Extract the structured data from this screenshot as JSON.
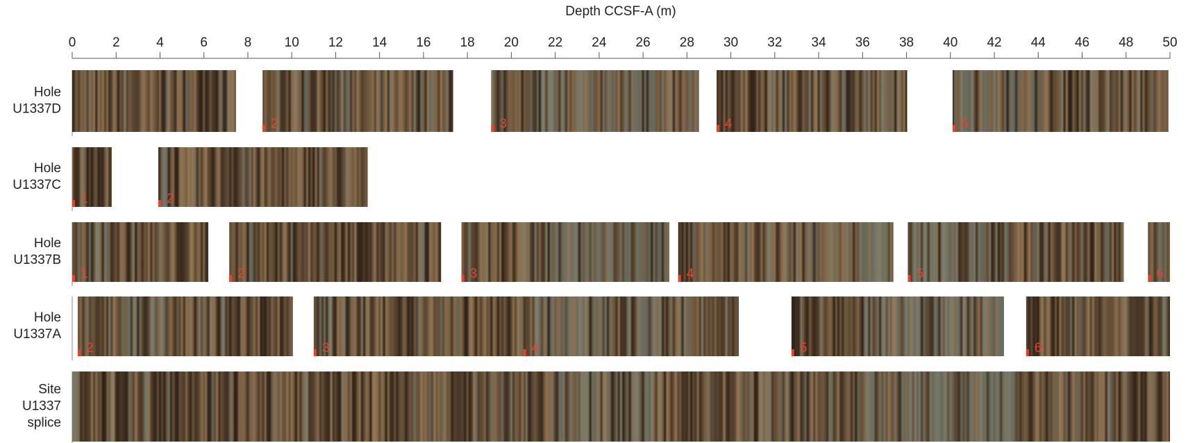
{
  "chart_data": {
    "type": "core-strip",
    "title": "Depth CCSF-A (m)",
    "xlim": [
      0,
      50
    ],
    "xticks": [
      0,
      2,
      4,
      6,
      8,
      10,
      12,
      14,
      16,
      18,
      20,
      22,
      24,
      26,
      28,
      30,
      32,
      34,
      36,
      38,
      40,
      42,
      44,
      46,
      48,
      50
    ],
    "rows": [
      {
        "label": [
          "Hole",
          "U1337D"
        ],
        "segments": [
          {
            "start": 0,
            "end": 7.46
          },
          {
            "label": "2",
            "start": 8.67,
            "end": 17.35
          },
          {
            "label": "3",
            "start": 19.08,
            "end": 28.55
          },
          {
            "label": "4",
            "start": 29.35,
            "end": 38.03
          },
          {
            "label": "5",
            "start": 40.1,
            "end": 49.93
          }
        ]
      },
      {
        "label": [
          "Hole",
          "U1337C"
        ],
        "segments": [
          {
            "label": "1",
            "start": 0,
            "end": 1.8
          },
          {
            "label": "2",
            "start": 3.92,
            "end": 13.46
          }
        ]
      },
      {
        "label": [
          "Hole",
          "U1337B"
        ],
        "segments": [
          {
            "label": "1",
            "start": 0,
            "end": 6.2
          },
          {
            "label": "2",
            "start": 7.15,
            "end": 16.8
          },
          {
            "label": "3",
            "start": 17.73,
            "end": 27.2
          },
          {
            "label": "4",
            "start": 27.6,
            "end": 37.4
          },
          {
            "label": "5",
            "start": 38.06,
            "end": 47.9
          },
          {
            "label": "6",
            "start": 49.0,
            "end": 50
          }
        ]
      },
      {
        "label": [
          "Hole",
          "U1337A"
        ],
        "segments": [
          {
            "label": "2",
            "start": 0.25,
            "end": 10.05
          },
          {
            "label": "3",
            "start": 11.0,
            "end": 20.54
          },
          {
            "label": "4",
            "start": 20.54,
            "end": 30.36
          },
          {
            "label": "5",
            "start": 32.76,
            "end": 42.44
          },
          {
            "label": "6",
            "start": 43.45,
            "end": 50
          }
        ]
      },
      {
        "label": [
          "Site",
          "U1337",
          "splice"
        ],
        "segments": [
          {
            "start": 0,
            "end": 50
          }
        ]
      }
    ]
  }
}
